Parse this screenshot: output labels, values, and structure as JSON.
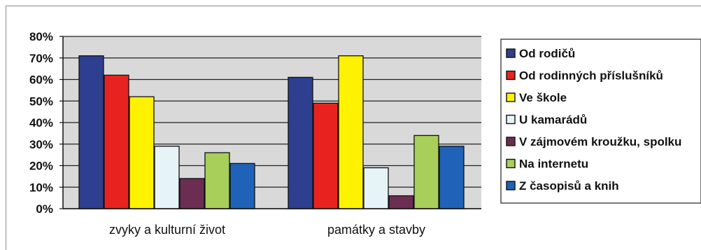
{
  "chart_data": {
    "type": "bar",
    "categories": [
      "zvyky a kulturní život",
      "památky a stavby"
    ],
    "series": [
      {
        "name": "Od rodičů",
        "values": [
          71,
          61
        ],
        "color": "#2f3f8f"
      },
      {
        "name": "Od rodinných příslušníků",
        "values": [
          62,
          49
        ],
        "color": "#e8231f"
      },
      {
        "name": "Ve škole",
        "values": [
          52,
          71
        ],
        "color": "#fff200"
      },
      {
        "name": "U kamarádů",
        "values": [
          29,
          19
        ],
        "color": "#e6f4f8"
      },
      {
        "name": "V zájmovém kroužku, spolku",
        "values": [
          14,
          6
        ],
        "color": "#6b2e52"
      },
      {
        "name": "Na internetu",
        "values": [
          26,
          34
        ],
        "color": "#a8cf5a"
      },
      {
        "name": "Z časopisů a knih",
        "values": [
          21,
          29
        ],
        "color": "#1f62b8"
      }
    ],
    "yticks": [
      "0%",
      "10%",
      "20%",
      "30%",
      "40%",
      "50%",
      "60%",
      "70%",
      "80%"
    ],
    "ylim": [
      0,
      80
    ],
    "grid": true,
    "legend_position": "right",
    "title": "",
    "xlabel": "",
    "ylabel": ""
  },
  "colors": {
    "plot_background": "#d9d9d9",
    "gridline": "#222222"
  }
}
